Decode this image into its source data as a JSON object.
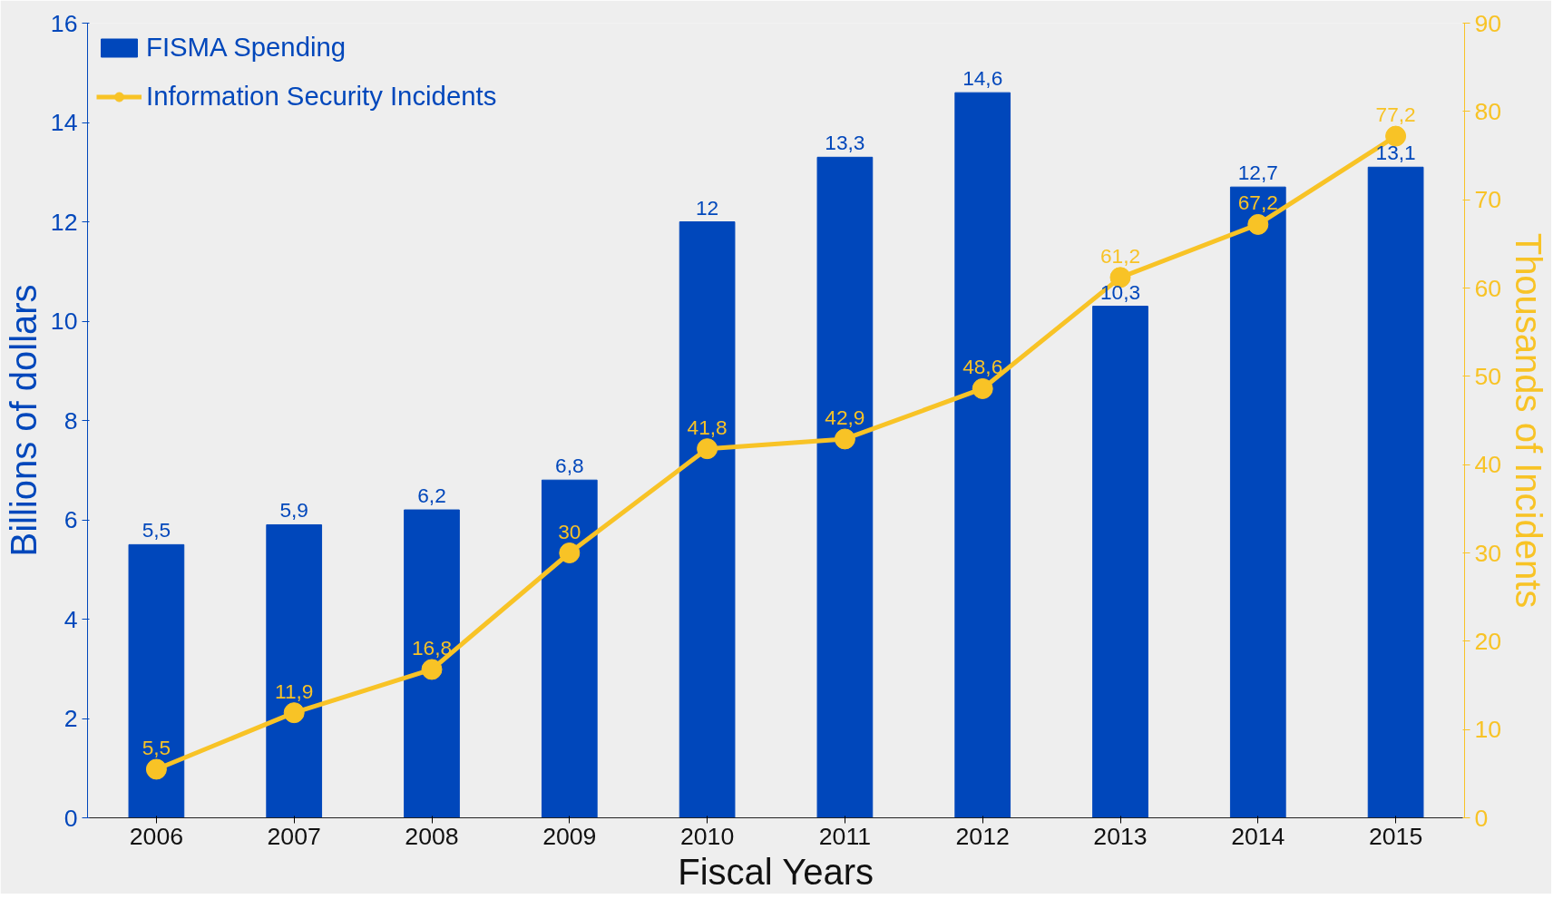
{
  "chart_data": {
    "type": "bar",
    "xlabel": "Fiscal Years",
    "ylabel": "Billions of dollars",
    "y2label": "Thousands of Incidents",
    "categories": [
      "2006",
      "2007",
      "2008",
      "2009",
      "2010",
      "2011",
      "2012",
      "2013",
      "2014",
      "2015"
    ],
    "ylim": [
      0,
      16
    ],
    "yticks": [
      0,
      2,
      4,
      6,
      8,
      10,
      12,
      14,
      16
    ],
    "y2lim": [
      0,
      90
    ],
    "y2ticks": [
      0,
      10,
      20,
      30,
      40,
      50,
      60,
      70,
      80,
      90
    ],
    "legend": "top left",
    "grid": false,
    "marker": "circle",
    "line_style": "solid",
    "series": [
      {
        "name": "FISMA Spending",
        "color": "#0047bb",
        "values": [
          5.5,
          5.9,
          6.2,
          6.8,
          12,
          13.3,
          14.6,
          10.3,
          12.7,
          13.1
        ],
        "value_labels": [
          "5,5",
          "5,9",
          "6,2",
          "6,8",
          "12",
          "13,3",
          "14,6",
          "10,3",
          "12,7",
          "13,1"
        ]
      },
      {
        "name": "Information Security Incidents",
        "type": "line",
        "axis": "y2",
        "color": "#f8c326",
        "values": [
          5.5,
          11.9,
          16.8,
          30,
          41.8,
          42.9,
          48.6,
          61.2,
          67.2,
          77.2
        ],
        "value_labels": [
          "5,5",
          "11,9",
          "16,8",
          "30",
          "41,8",
          "42,9",
          "48,6",
          "61,2",
          "67,2",
          "77,2"
        ]
      }
    ]
  }
}
